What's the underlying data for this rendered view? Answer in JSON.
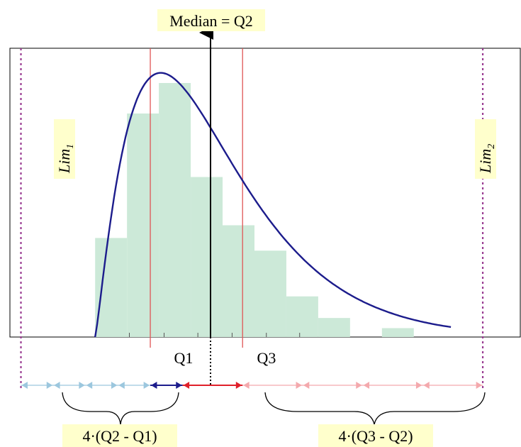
{
  "labels": {
    "median": "Median = Q2",
    "lim1": "Lim",
    "lim1_sub": "1",
    "lim2": "Lim",
    "lim2_sub": "2",
    "q1": "Q1",
    "q3": "Q3",
    "lower_fence": "4·(Q2 - Q1)",
    "upper_fence": "4·(Q3 - Q2)"
  },
  "colors": {
    "histogram": "#cce9d8",
    "curve": "#1c1c8c",
    "quartile_lines": "#e05555",
    "limit_lines": "#9a3c92",
    "highlight": "#ffffcc",
    "lower_arrows": "#9cc7de",
    "upper_arrows": "#f4a9ad",
    "q1_q2_arrow": "#1c1c8c",
    "q2_q3_arrow": "#e0202a"
  },
  "chart_data": {
    "type": "bar",
    "scale": {
      "xmin": 0,
      "xmax": 100,
      "ymax": 100
    },
    "histogram": [
      {
        "x0": 20,
        "x1": 26.7,
        "h": 39
      },
      {
        "x0": 26.7,
        "x1": 33.4,
        "h": 88
      },
      {
        "x0": 33.4,
        "x1": 40.1,
        "h": 100
      },
      {
        "x0": 40.1,
        "x1": 46.8,
        "h": 63
      },
      {
        "x0": 46.8,
        "x1": 53.5,
        "h": 44
      },
      {
        "x0": 53.5,
        "x1": 60.2,
        "h": 34
      },
      {
        "x0": 60.2,
        "x1": 66.9,
        "h": 16
      },
      {
        "x0": 66.9,
        "x1": 73.6,
        "h": 7.5
      },
      {
        "x0": 73.6,
        "x1": 80.3,
        "h": 0
      },
      {
        "x0": 80.3,
        "x1": 87,
        "h": 3.5
      }
    ],
    "quartiles": {
      "Q1": 31.6,
      "Q2": 38.4,
      "Q3": 51
    },
    "limits": {
      "Lim1": 4.4,
      "Lim2": 101.5
    },
    "curve_peak": {
      "x": 33.8,
      "y": 104
    },
    "ticks": [
      27.2,
      34.5,
      41.6,
      48.8,
      56,
      63
    ]
  }
}
